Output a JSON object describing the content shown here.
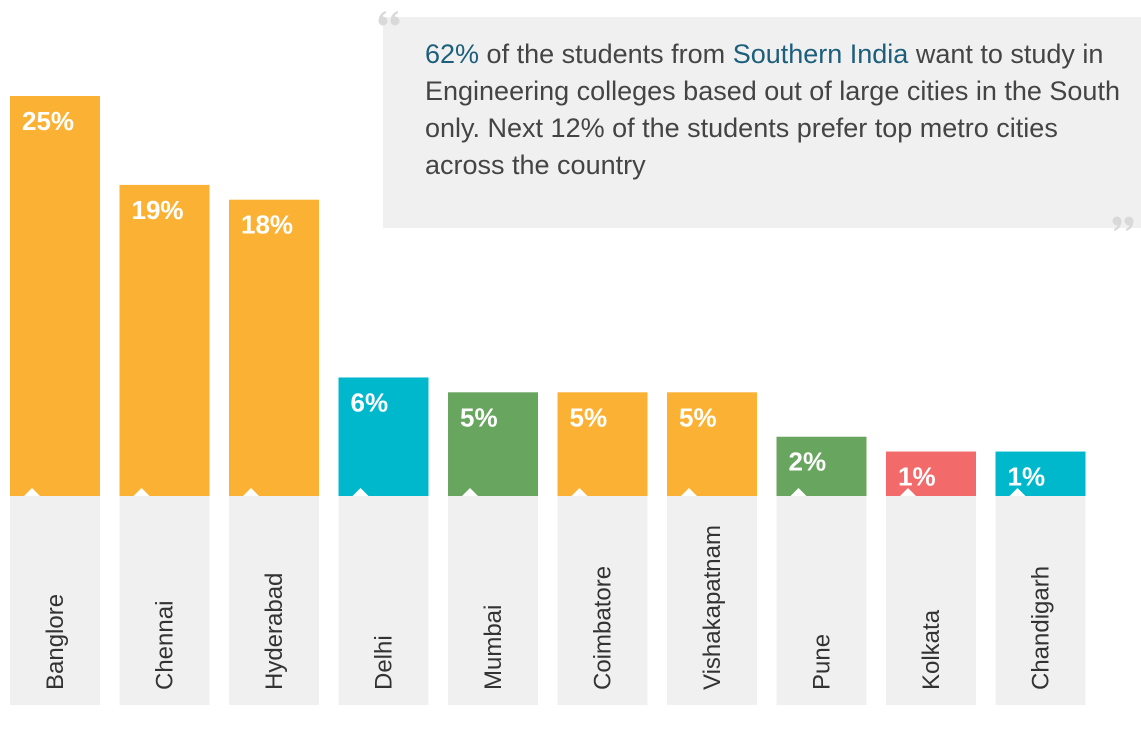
{
  "chart_data": {
    "type": "bar",
    "annotation": [
      "62%",
      " of the students from ",
      "Southern India",
      " want to study in Engineering colleges based out of large cities in the South only. Next 12% of the students prefer top metro cities across the country"
    ],
    "categories": [
      "Banglore",
      "Chennai",
      "Hyderabad",
      "Delhi",
      "Mumbai",
      "Coimbatore",
      "Vishakapatnam",
      "Pune",
      "Kolkata",
      "Chandigarh"
    ],
    "values": [
      25,
      19,
      18,
      6,
      5,
      5,
      5,
      2,
      1,
      1
    ],
    "value_labels": [
      "25%",
      "19%",
      "18%",
      "6%",
      "5%",
      "5%",
      "5%",
      "2%",
      "1%",
      "1%"
    ],
    "colors": [
      "#fbb234",
      "#fbb234",
      "#fbb234",
      "#00b8cc",
      "#68a55e",
      "#fbb234",
      "#fbb234",
      "#68a55e",
      "#f26a6a",
      "#00b8cc"
    ],
    "ylim": [
      -2,
      25
    ]
  }
}
